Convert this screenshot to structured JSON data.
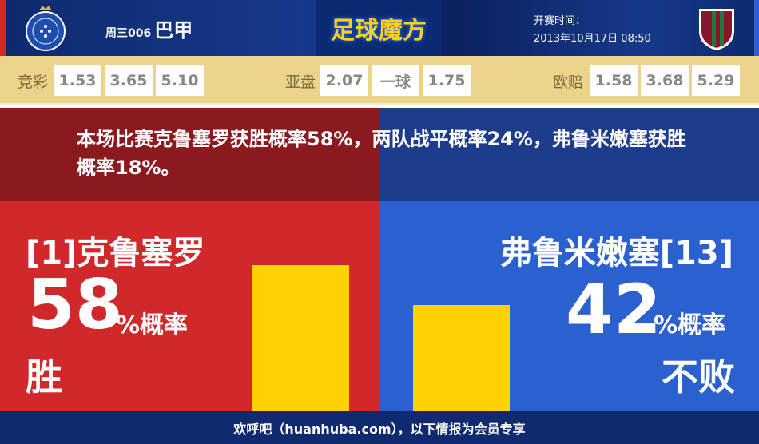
{
  "header": {
    "week": "周三006",
    "league": "巴甲",
    "brand": "足球魔方",
    "time_label": "开赛时间：",
    "time": "2013年10月17日 08:50"
  },
  "odds": {
    "jingcai": {
      "label": "竞彩",
      "values": [
        "1.53",
        "3.65",
        "5.10"
      ]
    },
    "yapan": {
      "label": "亚盘",
      "values": [
        "2.07",
        "一球",
        "1.75"
      ]
    },
    "oupei": {
      "label": "欧赔",
      "values": [
        "1.58",
        "3.68",
        "5.29"
      ]
    }
  },
  "summary": "本场比赛克鲁塞罗获胜概率58%，两队战平概率24%，弗鲁米嫩塞获胜概率18%。",
  "home": {
    "team": "[1]克鲁塞罗",
    "pct": "58",
    "pct_suffix": "%概率",
    "outcome": "胜",
    "value": 58
  },
  "away": {
    "team": "弗鲁米嫩塞[13]",
    "pct": "42",
    "pct_suffix": "%概率",
    "outcome": "不败",
    "value": 42
  },
  "footer": "欢呼吧（huanhuba.com），以下情报为会员专享",
  "colors": {
    "home": "#d0282b",
    "away": "#2b60cf",
    "bar": "#ffd200"
  }
}
